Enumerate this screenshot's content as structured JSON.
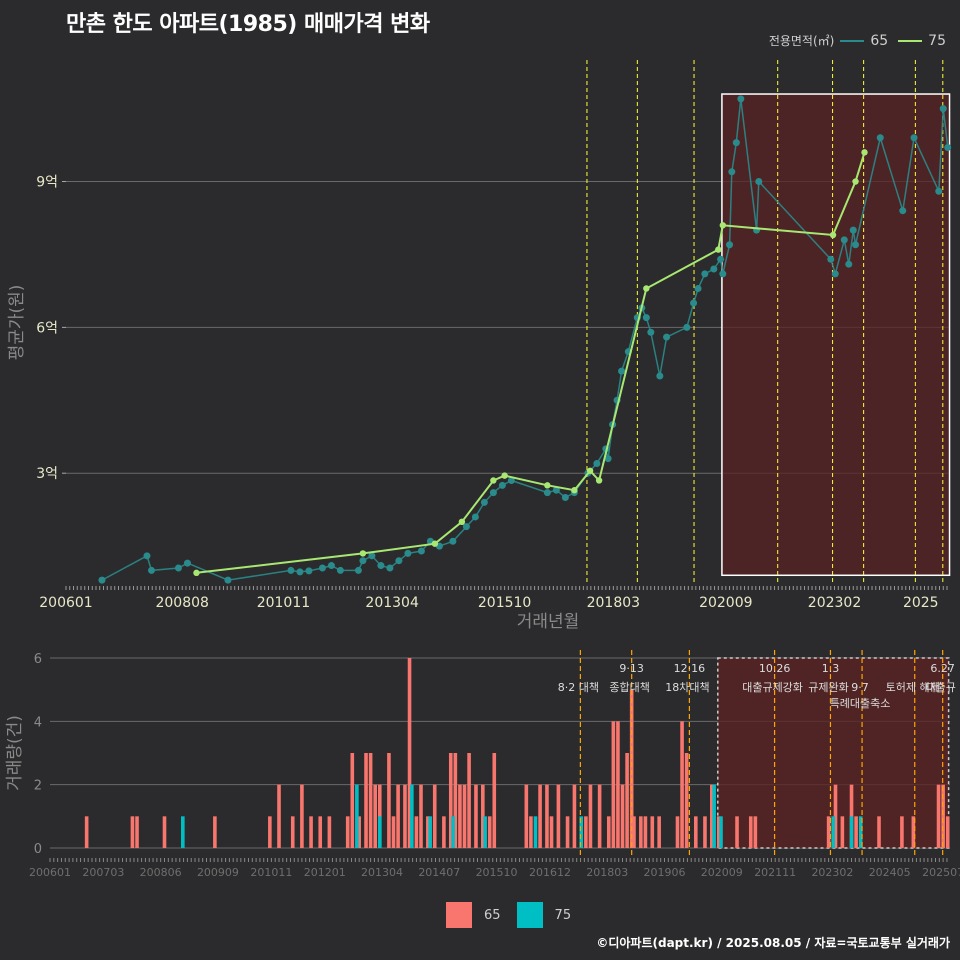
{
  "title": "만촌 한도 아파트(1985) 매매가격 변화",
  "footer": "©디아파트(dapt.kr) / 2025.08.05 / 자료=국토교통부 실거래가",
  "legend_title": "전용면적(㎡)",
  "colors": {
    "line65": "#2a8b8c",
    "line75": "#a8e872",
    "bar65": "#f8766d",
    "bar75": "#00bfc4",
    "policy_line": "#ffff33",
    "policy_line_bottom": "#ffa500",
    "highlight": "#5a2323"
  },
  "chart_data": [
    {
      "type": "line",
      "title": "만촌 한도 아파트(1985) 매매가격 변화",
      "xlabel": "거래년월",
      "ylabel": "평균가(원)",
      "x_ticks": [
        "200601",
        "200808",
        "201011",
        "201304",
        "201510",
        "201803",
        "202009",
        "202302",
        "2025"
      ],
      "y_ticks": [
        "3억",
        "6억",
        "9억"
      ],
      "ylim": [
        0.7,
        11.5
      ],
      "xlim": [
        2006.0,
        2025.65
      ],
      "policy_dates": [
        2017.58,
        2018.7,
        2019.96,
        2021.82,
        2023.04,
        2023.73,
        2024.88,
        2025.49
      ],
      "highlight_range": [
        2020.58,
        2025.64,
        0.9,
        10.8
      ],
      "series": [
        {
          "name": "65",
          "points": [
            [
              2006.8,
              0.8
            ],
            [
              2007.8,
              1.3
            ],
            [
              2007.9,
              1.0
            ],
            [
              2008.5,
              1.05
            ],
            [
              2008.7,
              1.15
            ],
            [
              2009.6,
              0.8
            ],
            [
              2011.0,
              1.0
            ],
            [
              2011.2,
              0.97
            ],
            [
              2011.4,
              0.99
            ],
            [
              2011.7,
              1.05
            ],
            [
              2011.9,
              1.1
            ],
            [
              2012.1,
              1.0
            ],
            [
              2012.5,
              1.0
            ],
            [
              2012.6,
              1.2
            ],
            [
              2012.8,
              1.3
            ],
            [
              2013.0,
              1.1
            ],
            [
              2013.2,
              1.05
            ],
            [
              2013.4,
              1.2
            ],
            [
              2013.6,
              1.35
            ],
            [
              2013.9,
              1.4
            ],
            [
              2014.1,
              1.6
            ],
            [
              2014.3,
              1.5
            ],
            [
              2014.6,
              1.6
            ],
            [
              2014.9,
              1.9
            ],
            [
              2015.1,
              2.1
            ],
            [
              2015.3,
              2.4
            ],
            [
              2015.5,
              2.6
            ],
            [
              2015.7,
              2.75
            ],
            [
              2015.9,
              2.85
            ],
            [
              2016.7,
              2.6
            ],
            [
              2016.9,
              2.65
            ],
            [
              2017.1,
              2.5
            ],
            [
              2017.3,
              2.6
            ],
            [
              2017.6,
              3.0
            ],
            [
              2017.8,
              3.2
            ],
            [
              2018.0,
              3.5
            ],
            [
              2018.05,
              3.3
            ],
            [
              2018.15,
              4.0
            ],
            [
              2018.25,
              4.5
            ],
            [
              2018.35,
              5.1
            ],
            [
              2018.5,
              5.5
            ],
            [
              2018.7,
              6.2
            ],
            [
              2018.8,
              6.4
            ],
            [
              2018.9,
              6.2
            ],
            [
              2019.0,
              5.9
            ],
            [
              2019.2,
              5.0
            ],
            [
              2019.35,
              5.8
            ],
            [
              2019.8,
              6.0
            ],
            [
              2019.95,
              6.5
            ],
            [
              2020.05,
              6.8
            ],
            [
              2020.2,
              7.1
            ],
            [
              2020.4,
              7.2
            ],
            [
              2020.55,
              7.4
            ],
            [
              2020.6,
              7.1
            ],
            [
              2020.75,
              7.7
            ],
            [
              2020.8,
              9.2
            ],
            [
              2020.9,
              9.8
            ],
            [
              2021.0,
              10.7
            ],
            [
              2021.35,
              8.0
            ],
            [
              2021.4,
              9.0
            ],
            [
              2023.0,
              7.4
            ],
            [
              2023.1,
              7.1
            ],
            [
              2023.3,
              7.8
            ],
            [
              2023.4,
              7.3
            ],
            [
              2023.5,
              8.0
            ],
            [
              2023.55,
              7.7
            ],
            [
              2024.1,
              9.9
            ],
            [
              2024.6,
              8.4
            ],
            [
              2024.85,
              9.9
            ],
            [
              2025.4,
              8.8
            ],
            [
              2025.5,
              10.5
            ],
            [
              2025.6,
              9.7
            ]
          ]
        },
        {
          "name": "75",
          "points": [
            [
              2008.9,
              0.95
            ],
            [
              2012.6,
              1.35
            ],
            [
              2014.2,
              1.55
            ],
            [
              2014.8,
              2.0
            ],
            [
              2015.5,
              2.85
            ],
            [
              2015.75,
              2.95
            ],
            [
              2016.7,
              2.75
            ],
            [
              2017.3,
              2.65
            ],
            [
              2017.65,
              3.05
            ],
            [
              2017.85,
              2.85
            ],
            [
              2018.9,
              6.8
            ],
            [
              2020.5,
              7.6
            ],
            [
              2020.6,
              8.1
            ],
            [
              2023.05,
              7.9
            ],
            [
              2023.55,
              9.0
            ],
            [
              2023.75,
              9.6
            ]
          ]
        }
      ]
    },
    {
      "type": "bar",
      "xlabel": "",
      "ylabel": "거래량(건)",
      "x_ticks": [
        "200601",
        "200703",
        "200806",
        "200909",
        "201011",
        "201201",
        "201304",
        "201407",
        "201510",
        "201612",
        "201803",
        "201906",
        "202009",
        "202111",
        "202302",
        "202405",
        "202507"
      ],
      "y_ticks": [
        "0",
        "2",
        "4",
        "6"
      ],
      "ylim": [
        0,
        6
      ],
      "xlim": [
        2006.0,
        2025.65
      ],
      "policy_labels": [
        {
          "x": 2017.58,
          "top": "",
          "bottom": "8·2 대책"
        },
        {
          "x": 2018.7,
          "top": "9·13",
          "bottom": "종합대책"
        },
        {
          "x": 2019.96,
          "top": "12·16",
          "bottom": "18차대책"
        },
        {
          "x": 2021.82,
          "top": "10.26",
          "bottom": "대출규제강화"
        },
        {
          "x": 2023.04,
          "top": "1.3",
          "bottom": "규제완화"
        },
        {
          "x": 2023.73,
          "top": "",
          "bottom": "9·7"
        },
        {
          "x": 2023.73,
          "top": "",
          "bottom": "특례대출축소"
        },
        {
          "x": 2024.88,
          "top": "",
          "bottom": "토허제 해제"
        },
        {
          "x": 2025.49,
          "top": "6.27",
          "bottom": "대출규"
        }
      ],
      "series": [
        {
          "name": "65",
          "bars": [
            [
              2006.8,
              1
            ],
            [
              2007.8,
              1
            ],
            [
              2007.9,
              1
            ],
            [
              2008.5,
              1
            ],
            [
              2009.6,
              1
            ],
            [
              2010.8,
              1
            ],
            [
              2011.0,
              2
            ],
            [
              2011.3,
              1
            ],
            [
              2011.5,
              2
            ],
            [
              2011.7,
              1
            ],
            [
              2011.9,
              1
            ],
            [
              2012.1,
              1
            ],
            [
              2012.5,
              1
            ],
            [
              2012.6,
              3
            ],
            [
              2012.75,
              1
            ],
            [
              2012.9,
              3
            ],
            [
              2013.0,
              3
            ],
            [
              2013.1,
              2
            ],
            [
              2013.2,
              2
            ],
            [
              2013.4,
              3
            ],
            [
              2013.5,
              1
            ],
            [
              2013.6,
              2
            ],
            [
              2013.75,
              2
            ],
            [
              2013.85,
              6
            ],
            [
              2014.0,
              1
            ],
            [
              2014.1,
              2
            ],
            [
              2014.25,
              1
            ],
            [
              2014.4,
              2
            ],
            [
              2014.6,
              1
            ],
            [
              2014.75,
              3
            ],
            [
              2014.85,
              3
            ],
            [
              2014.95,
              2
            ],
            [
              2015.05,
              2
            ],
            [
              2015.15,
              3
            ],
            [
              2015.3,
              2
            ],
            [
              2015.45,
              2
            ],
            [
              2015.6,
              1
            ],
            [
              2015.7,
              3
            ],
            [
              2016.4,
              2
            ],
            [
              2016.5,
              1
            ],
            [
              2016.7,
              2
            ],
            [
              2016.85,
              2
            ],
            [
              2016.95,
              1
            ],
            [
              2017.1,
              2
            ],
            [
              2017.3,
              1
            ],
            [
              2017.45,
              2
            ],
            [
              2017.7,
              1
            ],
            [
              2017.8,
              2
            ],
            [
              2018.0,
              2
            ],
            [
              2018.2,
              1
            ],
            [
              2018.3,
              4
            ],
            [
              2018.4,
              4
            ],
            [
              2018.5,
              2
            ],
            [
              2018.6,
              3
            ],
            [
              2018.7,
              5
            ],
            [
              2018.75,
              1
            ],
            [
              2018.9,
              1
            ],
            [
              2019.0,
              1
            ],
            [
              2019.15,
              1
            ],
            [
              2019.3,
              1
            ],
            [
              2019.7,
              1
            ],
            [
              2019.8,
              4
            ],
            [
              2019.9,
              3
            ],
            [
              2020.1,
              1
            ],
            [
              2020.3,
              1
            ],
            [
              2020.45,
              2
            ],
            [
              2020.6,
              1
            ],
            [
              2021.0,
              1
            ],
            [
              2021.3,
              1
            ],
            [
              2021.4,
              1
            ],
            [
              2023.0,
              1
            ],
            [
              2023.15,
              2
            ],
            [
              2023.3,
              1
            ],
            [
              2023.5,
              2
            ],
            [
              2023.6,
              1
            ],
            [
              2024.1,
              1
            ],
            [
              2024.6,
              1
            ],
            [
              2024.85,
              1
            ],
            [
              2025.4,
              2
            ],
            [
              2025.5,
              2
            ],
            [
              2025.6,
              1
            ]
          ]
        },
        {
          "name": "75",
          "bars": [
            [
              2008.9,
              1
            ],
            [
              2012.7,
              2
            ],
            [
              2013.2,
              1
            ],
            [
              2013.9,
              2
            ],
            [
              2014.3,
              1
            ],
            [
              2014.8,
              1
            ],
            [
              2015.5,
              1
            ],
            [
              2016.6,
              1
            ],
            [
              2017.6,
              1
            ],
            [
              2020.5,
              2
            ],
            [
              2020.65,
              1
            ],
            [
              2023.1,
              1
            ],
            [
              2023.5,
              1
            ],
            [
              2023.7,
              1
            ]
          ]
        }
      ]
    }
  ]
}
